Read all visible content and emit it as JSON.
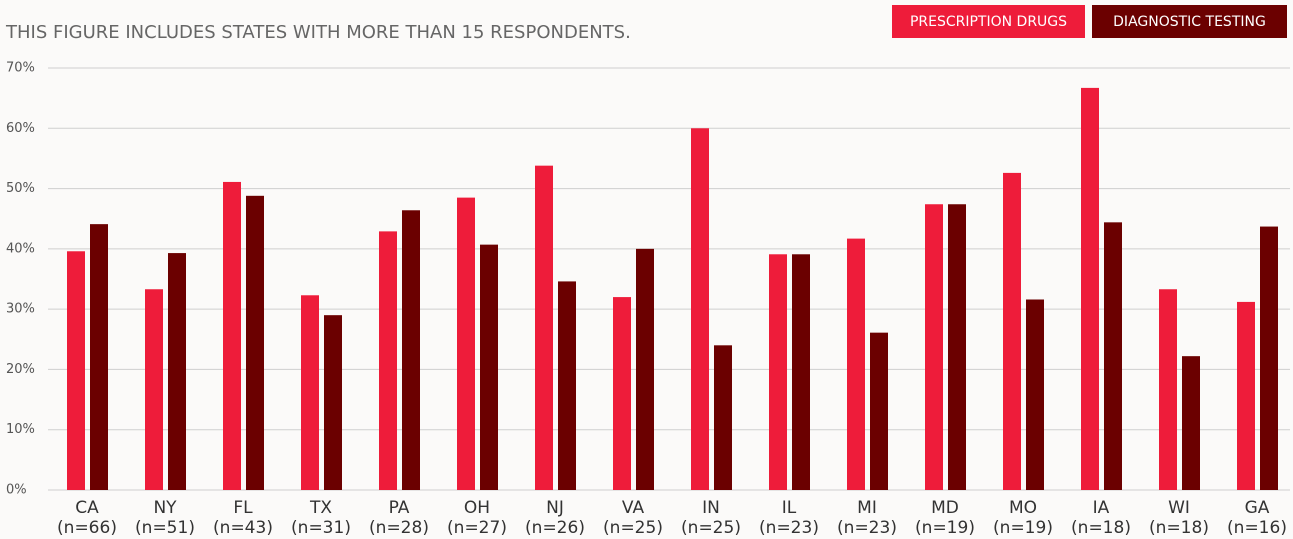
{
  "chart_data": {
    "type": "bar",
    "subtitle": "THIS FIGURE INCLUDES STATES WITH MORE THAN 15 RESPONDENTS.",
    "categories": [
      "CA",
      "NY",
      "FL",
      "TX",
      "PA",
      "OH",
      "NJ",
      "VA",
      "IN",
      "IL",
      "MI",
      "MD",
      "MO",
      "IA",
      "WI",
      "GA"
    ],
    "category_notes": [
      "(n=66)",
      "(n=51)",
      "(n=43)",
      "(n=31)",
      "(n=28)",
      "(n=27)",
      "(n=26)",
      "(n=25)",
      "(n=25)",
      "(n=23)",
      "(n=23)",
      "(n=19)",
      "(n=19)",
      "(n=18)",
      "(n=18)",
      "(n=16)"
    ],
    "series": [
      {
        "name": "PRESCRIPTION DRUGS",
        "color": "#ee1c3a",
        "values": [
          39.6,
          33.3,
          51.1,
          32.3,
          42.9,
          48.5,
          53.8,
          32.0,
          60.0,
          39.1,
          41.7,
          47.4,
          52.6,
          66.7,
          33.3,
          31.2
        ]
      },
      {
        "name": "DIAGNOSTIC TESTING",
        "color": "#6b0000",
        "values": [
          44.1,
          39.3,
          48.8,
          29.0,
          46.4,
          40.7,
          34.6,
          40.0,
          24.0,
          39.1,
          26.1,
          47.4,
          31.6,
          44.4,
          22.2,
          43.7
        ]
      }
    ],
    "ylim": [
      0,
      70
    ],
    "yticks": [
      {
        "value": 0,
        "label": "0%"
      },
      {
        "value": 10,
        "label": "10%"
      },
      {
        "value": 20,
        "label": "20%"
      },
      {
        "value": 30,
        "label": "30%"
      },
      {
        "value": 40,
        "label": "40%"
      },
      {
        "value": 50,
        "label": "50%"
      },
      {
        "value": 60,
        "label": "60%"
      },
      {
        "value": 70,
        "label": "70%"
      }
    ],
    "grid": true,
    "legend": "top-right"
  }
}
